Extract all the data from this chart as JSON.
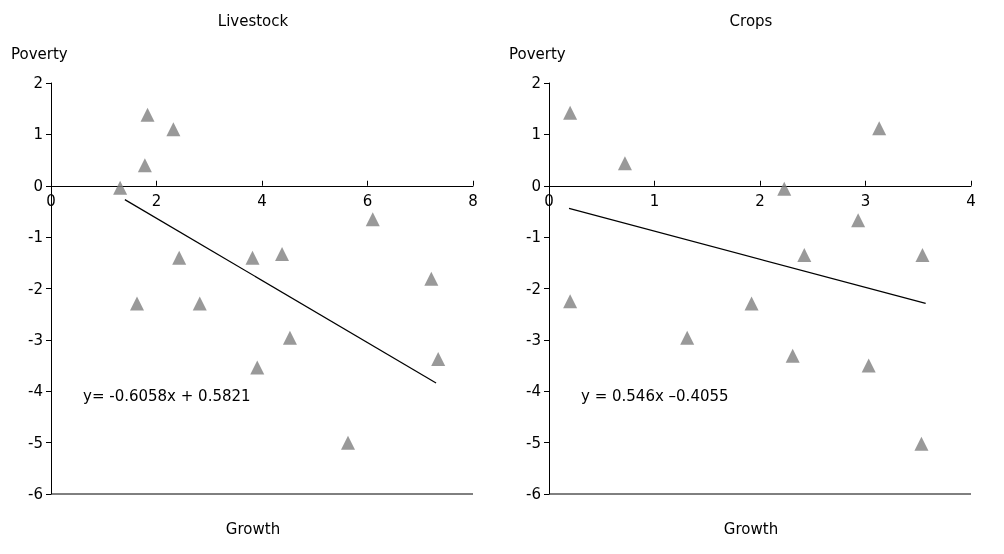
{
  "chart_data": [
    {
      "type": "scatter",
      "title": "Livestock",
      "ylabel": "Poverty",
      "xlabel": "Growth",
      "annotations": [
        "y= -0.6058x + 0.5821"
      ],
      "xlim": [
        0,
        8
      ],
      "xticks": [
        0,
        2,
        4,
        6,
        8
      ],
      "ylim": [
        -6,
        2
      ],
      "yticks": [
        -6,
        -5,
        -4,
        -3,
        -2,
        -1,
        0,
        1,
        2
      ],
      "grid": false,
      "legend": false,
      "marker": "triangle",
      "series": [
        {
          "color": "#7f7f7f",
          "x": [
            1.83,
            2.32,
            1.78,
            1.31,
            6.1,
            2.43,
            3.82,
            4.38,
            7.21,
            1.63,
            2.82,
            4.53,
            3.91,
            7.34,
            5.63
          ],
          "values": [
            1.38,
            1.1,
            0.4,
            -0.04,
            -0.65,
            -1.4,
            -1.4,
            -1.33,
            -1.81,
            -2.29,
            -2.29,
            -2.96,
            -3.54,
            -3.37,
            -5.0
          ]
        },
        {
          "type": "line",
          "color": "#000000",
          "marker": "none",
          "x": [
            1.4,
            7.3
          ],
          "values": [
            -0.27,
            -3.84
          ]
        }
      ]
    },
    {
      "type": "scatter",
      "title": "Crops",
      "ylabel": "Poverty",
      "xlabel": "Growth",
      "annotations": [
        "y = 0.546x –0.4055"
      ],
      "xlim": [
        0,
        4
      ],
      "xticks": [
        0,
        1,
        2,
        3,
        4
      ],
      "ylim": [
        -6,
        2
      ],
      "yticks": [
        -6,
        -5,
        -4,
        -3,
        -2,
        -1,
        0,
        1,
        2
      ],
      "grid": false,
      "legend": false,
      "marker": "triangle",
      "series": [
        {
          "color": "#7f7f7f",
          "x": [
            0.2,
            0.72,
            3.13,
            2.23,
            2.93,
            2.42,
            3.54,
            0.2,
            1.92,
            1.31,
            2.31,
            3.03,
            3.53
          ],
          "values": [
            1.42,
            0.44,
            1.12,
            -0.06,
            -0.67,
            -1.35,
            -1.35,
            -2.25,
            -2.29,
            -2.96,
            -3.31,
            -3.5,
            -5.02
          ]
        },
        {
          "type": "line",
          "color": "#000000",
          "marker": "none",
          "x": [
            0.19,
            3.57
          ],
          "values": [
            -0.44,
            -2.29
          ]
        }
      ]
    }
  ]
}
